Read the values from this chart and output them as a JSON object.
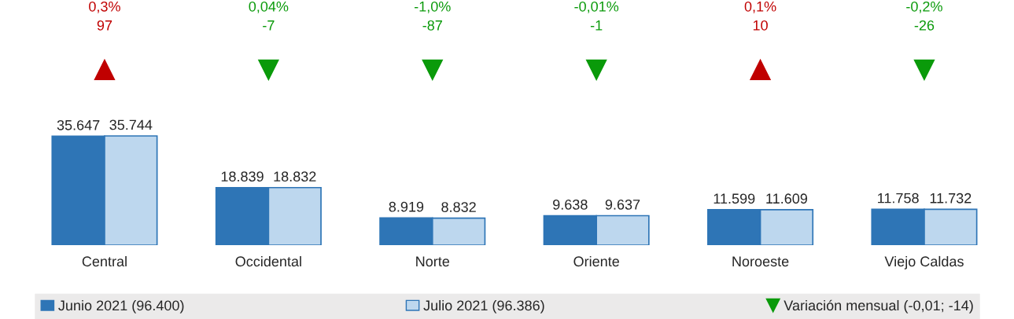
{
  "chart_data": {
    "type": "bar",
    "categories": [
      "Central",
      "Occidental",
      "Norte",
      "Oriente",
      "Noroeste",
      "Viejo Caldas"
    ],
    "series": [
      {
        "name": "Junio 2021 (96.400)",
        "color": "#2e75b6",
        "values": [
          35647,
          18839,
          8919,
          9638,
          11599,
          11758
        ],
        "value_labels": [
          "35.647",
          "18.839",
          "8.919",
          "9.638",
          "11.599",
          "11.758"
        ]
      },
      {
        "name": "Julio 2021 (96.386)",
        "color": "#bdd7ee",
        "values": [
          35744,
          18832,
          8832,
          9637,
          11609,
          11732
        ],
        "value_labels": [
          "35.744",
          "18.832",
          "8.832",
          "9.637",
          "11.609",
          "11.732"
        ]
      }
    ],
    "legend": "bottom",
    "annotations": [
      "0,3%\n97",
      "0,04%\n-7",
      "-1,0%\n-87",
      "-0,01%\n-1",
      "0,1%\n10",
      "-0,2%\n-26",
      "Variación mensual (-0,01; -14)"
    ]
  }
}
